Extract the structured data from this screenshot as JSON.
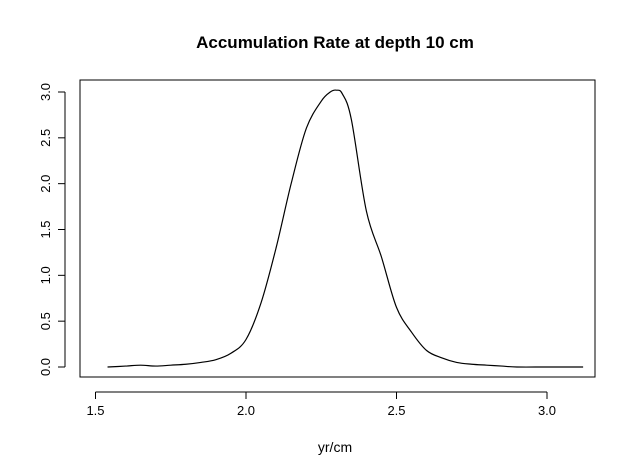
{
  "chart_data": {
    "type": "line",
    "title": "Accumulation Rate at depth 10 cm",
    "xlabel": "yr/cm",
    "ylabel": "",
    "xlim": [
      1.5,
      3.15
    ],
    "ylim": [
      0,
      3.0
    ],
    "x_ticks": [
      "1.5",
      "2.0",
      "2.5",
      "3.0"
    ],
    "y_ticks": [
      "0.0",
      "0.5",
      "1.0",
      "1.5",
      "2.0",
      "2.5",
      "3.0"
    ],
    "grid": false,
    "legend": "none",
    "series": [
      {
        "x": [
          1.54,
          1.6,
          1.65,
          1.7,
          1.75,
          1.8,
          1.85,
          1.9,
          1.95,
          2.0,
          2.05,
          2.1,
          2.15,
          2.2,
          2.25,
          2.28,
          2.3,
          2.32,
          2.35,
          2.4,
          2.45,
          2.5,
          2.55,
          2.6,
          2.65,
          2.7,
          2.75,
          2.8,
          2.85,
          2.9,
          3.0,
          3.12
        ],
        "y": [
          0.0,
          0.01,
          0.02,
          0.01,
          0.02,
          0.03,
          0.05,
          0.08,
          0.15,
          0.3,
          0.7,
          1.3,
          2.0,
          2.6,
          2.9,
          3.0,
          3.02,
          2.98,
          2.7,
          1.7,
          1.2,
          0.65,
          0.38,
          0.18,
          0.1,
          0.05,
          0.03,
          0.02,
          0.01,
          0.0,
          0.0,
          0.0
        ]
      }
    ]
  }
}
